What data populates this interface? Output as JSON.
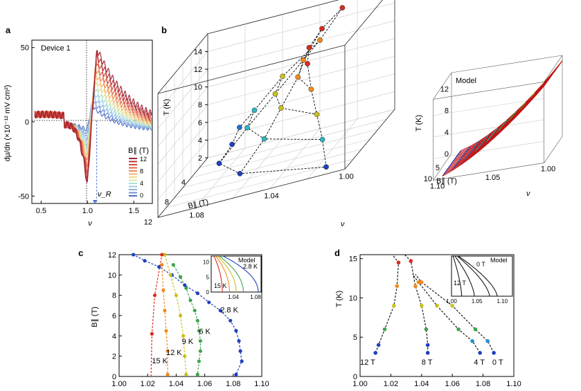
{
  "panel_labels": {
    "a": "a",
    "b": "b",
    "c": "c",
    "d": "d"
  },
  "chart_data": [
    {
      "id": "a",
      "type": "line",
      "title": "Device 1",
      "xlabel": "ν",
      "ylabel": "dμ/dn (×10⁻¹² mV cm²)",
      "xlim": [
        0.4,
        1.7
      ],
      "ylim": [
        -55,
        55
      ],
      "xticks": [
        "0.5",
        "1.0",
        "1.5"
      ],
      "xtick_values": [
        0.5,
        1.0,
        1.5
      ],
      "yticks": [
        "-50",
        "0",
        "50"
      ],
      "ytick_values": [
        -50,
        0,
        50
      ],
      "legend_title": "B∥ (T)",
      "legend_labels": [
        "12",
        "8",
        "4",
        "0"
      ],
      "annotation": "ν_R",
      "nu_R": 1.1,
      "series": [
        {
          "name": "0 T",
          "B": 0,
          "color": "#4b6cc8"
        },
        {
          "name": "1 T",
          "B": 1,
          "color": "#6f8fd6"
        },
        {
          "name": "2 T",
          "B": 2,
          "color": "#8fb2e0"
        },
        {
          "name": "3 T",
          "B": 3,
          "color": "#9ccfe2"
        },
        {
          "name": "4 T",
          "B": 4,
          "color": "#a8e0d8"
        },
        {
          "name": "5 T",
          "B": 5,
          "color": "#d6e6a6"
        },
        {
          "name": "6 T",
          "B": 6,
          "color": "#f1d68a"
        },
        {
          "name": "7 T",
          "B": 7,
          "color": "#f4b26e"
        },
        {
          "name": "8 T",
          "B": 8,
          "color": "#ee8b58"
        },
        {
          "name": "9 T",
          "B": 9,
          "color": "#e06a4a"
        },
        {
          "name": "10 T",
          "B": 10,
          "color": "#cf4a40"
        },
        {
          "name": "11 T",
          "B": 11,
          "color": "#b83238"
        },
        {
          "name": "12 T",
          "B": 12,
          "color": "#9c1f30"
        }
      ]
    },
    {
      "id": "b",
      "type": "scatter",
      "title": "",
      "xlabel": "ν",
      "ylabel": "T (K)",
      "zlabel": "B∥ (T)",
      "nu_ticks": [
        "1.00",
        "1.04",
        "1.08"
      ],
      "nu_tick_values": [
        1.0,
        1.04,
        1.08
      ],
      "T_ticks": [
        "2",
        "4",
        "6",
        "8",
        "10",
        "12",
        "14"
      ],
      "T_tick_values": [
        2,
        4,
        6,
        8,
        10,
        12,
        14
      ],
      "B_ticks": [
        "4",
        "8",
        "12"
      ],
      "B_tick_values": [
        4,
        8,
        12
      ],
      "points": [
        {
          "B": 0,
          "nu": 1.087,
          "T": 2.8
        },
        {
          "B": 0,
          "nu": 1.083,
          "T": 4.5
        },
        {
          "B": 0,
          "nu": 1.075,
          "T": 6
        },
        {
          "B": 0,
          "nu": 1.06,
          "T": 9
        },
        {
          "B": 0,
          "nu": 1.04,
          "T": 12
        },
        {
          "B": 0,
          "nu": 1.028,
          "T": 15
        },
        {
          "B": 4,
          "nu": 1.085,
          "T": 2.8
        },
        {
          "B": 4,
          "nu": 1.07,
          "T": 6
        },
        {
          "B": 4,
          "nu": 1.055,
          "T": 9
        },
        {
          "B": 4,
          "nu": 1.04,
          "T": 12
        },
        {
          "B": 4,
          "nu": 1.03,
          "T": 15
        },
        {
          "B": 8,
          "nu": 1.065,
          "T": 2.8
        },
        {
          "B": 8,
          "nu": 1.052,
          "T": 6
        },
        {
          "B": 8,
          "nu": 1.043,
          "T": 9
        },
        {
          "B": 8,
          "nu": 1.034,
          "T": 12
        },
        {
          "B": 8,
          "nu": 1.028,
          "T": 15
        },
        {
          "B": 12,
          "nu": 1.01,
          "T": 2.8
        },
        {
          "B": 12,
          "nu": 1.012,
          "T": 6
        },
        {
          "B": 12,
          "nu": 1.015,
          "T": 9
        },
        {
          "B": 12,
          "nu": 1.018,
          "T": 12
        },
        {
          "B": 12,
          "nu": 1.02,
          "T": 15
        }
      ]
    },
    {
      "id": "b-model",
      "type": "surface",
      "title": "Model",
      "xlabel": "ν",
      "ylabel": "T (K)",
      "zlabel": "B∥ (T)",
      "nu_ticks": [
        "1.00",
        "1.05",
        "1.10"
      ],
      "T_ticks": [
        "0",
        "4",
        "8",
        "12"
      ],
      "B_ticks": [
        "5",
        "10"
      ]
    },
    {
      "id": "c",
      "type": "scatter",
      "xlabel": "",
      "ylabel": "B∥ (T)",
      "xlim": [
        1.0,
        1.1
      ],
      "ylim": [
        0,
        12
      ],
      "xticks": [
        "1.00",
        "1.02",
        "1.04",
        "1.06",
        "1.08",
        "1.10"
      ],
      "xtick_values": [
        1.0,
        1.02,
        1.04,
        1.06,
        1.08,
        1.1
      ],
      "yticks": [
        "0",
        "2",
        "4",
        "6",
        "8",
        "10",
        "12"
      ],
      "ytick_values": [
        0,
        2,
        4,
        6,
        8,
        10,
        12
      ],
      "series": [
        {
          "name": "2.8 K",
          "color": "#1f3fbf",
          "x": [
            1.082,
            1.086,
            1.085,
            1.084,
            1.082,
            1.078,
            1.071,
            1.063,
            1.055,
            1.046,
            1.037,
            1.028,
            1.018,
            1.01
          ],
          "y": [
            0.2,
            1.5,
            2.5,
            3.5,
            4.5,
            5.5,
            6.5,
            7.3,
            8.2,
            9.0,
            10.0,
            10.8,
            11.4,
            12.0
          ]
        },
        {
          "name": "6 K",
          "color": "#3fa34d",
          "x": [
            1.055,
            1.056,
            1.057,
            1.057,
            1.056,
            1.055,
            1.053,
            1.05,
            1.047,
            1.043,
            1.038
          ],
          "y": [
            0.2,
            1.5,
            2.5,
            3.5,
            4.5,
            5.5,
            6.5,
            7.5,
            8.7,
            9.8,
            11.0
          ]
        },
        {
          "name": "9 K",
          "color": "#c9c21d",
          "x": [
            1.047,
            1.046,
            1.045,
            1.043,
            1.04,
            1.036,
            1.032
          ],
          "y": [
            0.2,
            2.0,
            4.0,
            6.0,
            8.0,
            10.0,
            12.0
          ]
        },
        {
          "name": "12 K",
          "color": "#f08a1a",
          "x": [
            1.034,
            1.034,
            1.033,
            1.032,
            1.031,
            1.03
          ],
          "y": [
            0.2,
            2.5,
            4.5,
            6.5,
            8.5,
            11.0
          ]
        },
        {
          "name": "15 K",
          "color": "#d92b1e",
          "x": [
            1.023,
            1.025,
            1.03
          ],
          "y": [
            4.2,
            8.0,
            12.0
          ]
        }
      ],
      "inset": {
        "title": "Model",
        "label_top": "2.8 K",
        "label_bottom": "15 K",
        "xticks": [
          "1.04",
          "1.08"
        ],
        "xtick_values": [
          1.04,
          1.08
        ],
        "yticks": [
          "0",
          "5",
          "10"
        ],
        "ytick_values": [
          0,
          5,
          10
        ]
      }
    },
    {
      "id": "d",
      "type": "scatter",
      "xlabel": "",
      "ylabel": "T (K)",
      "xlim": [
        1.0,
        1.1
      ],
      "ylim": [
        0,
        15.5
      ],
      "xticks": [
        "1.00",
        "1.02",
        "1.04",
        "1.06",
        "1.08",
        "1.10"
      ],
      "xtick_values": [
        1.0,
        1.02,
        1.04,
        1.06,
        1.08,
        1.1
      ],
      "yticks": [
        "0",
        "5",
        "10",
        "15"
      ],
      "ytick_values": [
        0,
        5,
        10,
        15
      ],
      "series": [
        {
          "name": "12 T",
          "x": [
            1.01,
            1.012,
            1.016,
            1.022,
            1.024,
            1.025
          ],
          "y": [
            3.0,
            4.0,
            6.0,
            9.0,
            11.5,
            14.5
          ]
        },
        {
          "name": "8 T",
          "x": [
            1.044,
            1.044,
            1.043,
            1.04,
            1.036,
            1.033
          ],
          "y": [
            3.0,
            4.0,
            6.0,
            9.0,
            11.5,
            14.7
          ]
        },
        {
          "name": "4 T",
          "x": [
            1.078,
            1.073,
            1.064,
            1.05,
            1.038
          ],
          "y": [
            3.0,
            4.5,
            6.0,
            9.0,
            12.0
          ]
        },
        {
          "name": "0 T",
          "x": [
            1.087,
            1.083,
            1.075,
            1.06,
            1.04
          ],
          "y": [
            3.0,
            4.5,
            6.0,
            9.0,
            12.0
          ]
        }
      ],
      "inset": {
        "title": "Model",
        "label_top": "0 T",
        "label_bottom": "12 T",
        "xticks": [
          "1.00",
          "1.05",
          "1.10"
        ],
        "xtick_values": [
          1.0,
          1.05,
          1.1
        ]
      }
    }
  ]
}
